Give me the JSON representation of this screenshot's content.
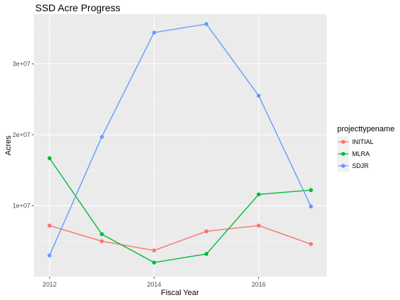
{
  "chart_data": {
    "type": "line",
    "title": "SSD Acre Progress",
    "xlabel": "Fiscal Year",
    "ylabel": "Acres",
    "x": [
      2012,
      2013,
      2014,
      2015,
      2016,
      2017
    ],
    "xlim": [
      2011.7,
      2017.3
    ],
    "ylim": [
      0,
      37000000
    ],
    "xticks": [
      2012,
      2014,
      2016
    ],
    "xtick_labels": [
      "2012",
      "2014",
      "2016"
    ],
    "yticks": [
      10000000,
      20000000,
      30000000
    ],
    "ytick_labels": [
      "1e+07",
      "2e+07",
      "3e+07"
    ],
    "grid": true,
    "legend": {
      "title": "projecttypename",
      "position": "right"
    },
    "series": [
      {
        "name": "INITIAL",
        "color": "#F8766D",
        "values": [
          7200000,
          5000000,
          3700000,
          6400000,
          7200000,
          4600000
        ]
      },
      {
        "name": "MLRA",
        "color": "#00BA38",
        "values": [
          16700000,
          6000000,
          2000000,
          3200000,
          11600000,
          12200000
        ]
      },
      {
        "name": "SDJR",
        "color": "#619CFF",
        "values": [
          3000000,
          19700000,
          34400000,
          35600000,
          25500000,
          9900000
        ]
      }
    ]
  }
}
